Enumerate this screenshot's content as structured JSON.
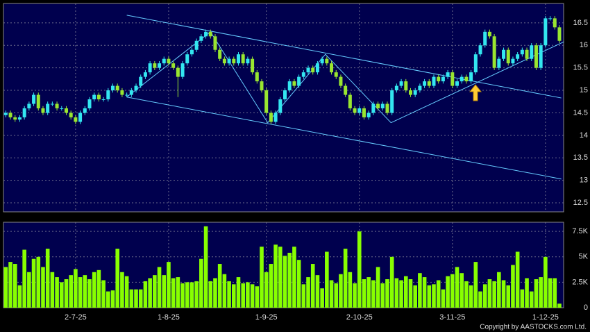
{
  "chart_data": [
    {
      "type": "candlestick",
      "up_color": "#33e6f0",
      "down_color": "#99e630",
      "trendline_color": "#66ccff",
      "xlim": [
        -0.5,
        119.9
      ],
      "ylim": [
        12.3,
        16.93
      ],
      "yticks": [
        12.5,
        13,
        13.5,
        14,
        14.5,
        15,
        15.5,
        16,
        16.5
      ],
      "grid": true,
      "open": [
        14.45,
        14.5,
        14.4,
        14.35,
        14.4,
        14.6,
        14.7,
        14.9,
        14.6,
        14.5,
        14.7,
        14.7,
        14.6,
        14.6,
        14.5,
        14.4,
        14.3,
        14.5,
        14.6,
        14.8,
        14.9,
        14.8,
        14.8,
        15.0,
        15.1,
        15.0,
        14.9,
        14.9,
        15.0,
        15.1,
        15.3,
        15.4,
        15.6,
        15.5,
        15.6,
        15.7,
        15.6,
        15.5,
        15.3,
        15.6,
        15.8,
        15.9,
        16.1,
        16.2,
        16.3,
        16.2,
        15.9,
        15.7,
        15.6,
        15.7,
        15.6,
        15.8,
        15.6,
        15.7,
        15.4,
        15.2,
        15.0,
        14.5,
        14.3,
        14.5,
        14.8,
        15.0,
        15.2,
        15.1,
        15.3,
        15.4,
        15.5,
        15.4,
        15.6,
        15.7,
        15.6,
        15.4,
        15.3,
        15.1,
        14.9,
        14.6,
        14.5,
        14.6,
        14.4,
        14.5,
        14.7,
        14.6,
        14.7,
        14.5,
        15.0,
        15.1,
        15.2,
        15.0,
        14.9,
        15.0,
        15.1,
        15.2,
        15.1,
        15.3,
        15.2,
        15.3,
        15.4,
        15.1,
        15.2,
        15.3,
        15.2,
        15.4,
        15.8,
        16.0,
        16.3,
        16.2,
        15.5,
        15.7,
        15.9,
        15.6,
        15.7,
        15.8,
        15.9,
        15.7,
        16.0,
        15.5,
        16.0,
        16.6,
        16.6,
        16.4
      ],
      "high": [
        14.55,
        14.55,
        14.45,
        14.45,
        14.65,
        14.75,
        14.95,
        14.95,
        14.65,
        14.75,
        14.75,
        14.75,
        14.65,
        14.65,
        14.55,
        14.45,
        14.55,
        14.65,
        14.85,
        14.95,
        14.95,
        14.85,
        15.05,
        15.15,
        15.15,
        15.05,
        14.95,
        15.05,
        15.15,
        15.35,
        15.45,
        15.65,
        15.65,
        15.65,
        15.75,
        15.75,
        15.65,
        15.55,
        15.65,
        15.85,
        15.95,
        16.15,
        16.25,
        16.35,
        16.35,
        16.25,
        15.95,
        15.75,
        15.75,
        15.75,
        15.85,
        15.85,
        15.75,
        15.75,
        15.45,
        15.25,
        15.05,
        14.55,
        14.55,
        14.85,
        15.05,
        15.25,
        15.25,
        15.35,
        15.45,
        15.55,
        15.55,
        15.65,
        15.75,
        15.75,
        15.65,
        15.45,
        15.35,
        15.15,
        14.95,
        14.65,
        14.65,
        14.65,
        14.55,
        14.75,
        14.75,
        14.75,
        14.75,
        15.05,
        15.15,
        15.25,
        15.25,
        15.05,
        15.05,
        15.15,
        15.25,
        15.25,
        15.35,
        15.35,
        15.35,
        15.45,
        15.45,
        15.25,
        15.35,
        15.35,
        15.45,
        15.85,
        16.05,
        16.35,
        16.35,
        16.25,
        15.75,
        15.95,
        15.95,
        15.75,
        15.85,
        15.95,
        15.95,
        16.05,
        16.05,
        16.05,
        16.65,
        16.65,
        16.65,
        16.45
      ],
      "low": [
        14.4,
        14.35,
        14.3,
        14.3,
        14.35,
        14.55,
        14.65,
        14.55,
        14.45,
        14.45,
        14.65,
        14.55,
        14.55,
        14.45,
        14.35,
        14.25,
        14.25,
        14.45,
        14.55,
        14.75,
        14.75,
        14.75,
        14.75,
        14.95,
        14.95,
        14.85,
        14.85,
        14.85,
        14.95,
        15.05,
        15.25,
        15.35,
        15.45,
        15.45,
        15.55,
        15.55,
        15.45,
        14.85,
        15.25,
        15.55,
        15.75,
        15.85,
        16.05,
        16.15,
        16.15,
        15.85,
        15.65,
        15.55,
        15.55,
        15.55,
        15.55,
        15.55,
        15.55,
        15.35,
        15.15,
        14.95,
        14.45,
        14.25,
        14.25,
        14.45,
        14.75,
        14.95,
        15.05,
        15.05,
        15.25,
        15.35,
        15.35,
        15.35,
        15.55,
        15.55,
        15.35,
        15.25,
        15.05,
        14.85,
        14.55,
        14.45,
        14.45,
        14.35,
        14.35,
        14.45,
        14.55,
        14.55,
        14.45,
        14.45,
        14.95,
        15.05,
        14.95,
        14.85,
        14.85,
        14.95,
        15.05,
        15.05,
        15.05,
        15.15,
        15.15,
        15.25,
        15.05,
        15.05,
        15.15,
        15.15,
        15.15,
        15.35,
        15.75,
        15.95,
        16.15,
        15.45,
        15.45,
        15.65,
        15.55,
        15.55,
        15.65,
        15.75,
        15.65,
        15.65,
        15.45,
        15.45,
        15.95,
        16.55,
        16.35,
        16.05
      ],
      "close": [
        14.5,
        14.4,
        14.35,
        14.4,
        14.6,
        14.7,
        14.9,
        14.6,
        14.5,
        14.7,
        14.7,
        14.6,
        14.6,
        14.5,
        14.4,
        14.3,
        14.5,
        14.6,
        14.8,
        14.9,
        14.8,
        14.8,
        15.0,
        15.1,
        15.0,
        14.9,
        14.9,
        15.0,
        15.1,
        15.3,
        15.4,
        15.6,
        15.5,
        15.6,
        15.7,
        15.6,
        15.5,
        15.3,
        15.6,
        15.8,
        15.9,
        16.1,
        16.2,
        16.3,
        16.2,
        15.9,
        15.7,
        15.6,
        15.7,
        15.6,
        15.8,
        15.6,
        15.7,
        15.4,
        15.2,
        15.0,
        14.5,
        14.3,
        14.5,
        14.8,
        15.0,
        15.2,
        15.1,
        15.3,
        15.4,
        15.5,
        15.4,
        15.6,
        15.7,
        15.6,
        15.4,
        15.3,
        15.1,
        14.9,
        14.6,
        14.5,
        14.6,
        14.4,
        14.5,
        14.7,
        14.6,
        14.7,
        14.5,
        15.0,
        15.1,
        15.2,
        15.0,
        14.9,
        15.0,
        15.1,
        15.2,
        15.1,
        15.3,
        15.2,
        15.3,
        15.4,
        15.1,
        15.2,
        15.3,
        15.2,
        15.4,
        15.8,
        16.0,
        16.3,
        16.2,
        15.5,
        15.7,
        15.9,
        15.6,
        15.7,
        15.8,
        15.9,
        15.7,
        16.0,
        15.5,
        16.0,
        16.6,
        16.6,
        16.4,
        16.1
      ],
      "trendlines": [
        {
          "x": [
            26,
            119.4
          ],
          "y": [
            16.67,
            14.83
          ]
        },
        {
          "x": [
            26,
            119.4
          ],
          "y": [
            14.85,
            13.03
          ]
        },
        {
          "x": [
            26,
            44,
            56.3,
            68.7,
            82.8
          ],
          "y": [
            14.85,
            16.3,
            14.28,
            15.8,
            14.28
          ]
        },
        {
          "x": [
            82.8,
            120
          ],
          "y": [
            14.28,
            16.08
          ]
        }
      ]
    },
    {
      "type": "bar",
      "color": "#88ff00",
      "xlim": [
        -0.5,
        119.9
      ],
      "ylim": [
        0,
        8400
      ],
      "yticks": [
        0,
        {
          "value": 2500,
          "label": "2.5K"
        },
        {
          "value": 5000,
          "label": "5K"
        },
        {
          "value": 7500,
          "label": "7.5K"
        }
      ],
      "xticks": [
        {
          "value": 15,
          "label": "2-7-25"
        },
        {
          "value": 35,
          "label": "1-8-25"
        },
        {
          "value": 56,
          "label": "1-9-25"
        },
        {
          "value": 76,
          "label": "2-10-25"
        },
        {
          "value": 96,
          "label": "3-11-25"
        },
        {
          "value": 116,
          "label": "1-12-25"
        }
      ],
      "grid": true,
      "values": [
        4000,
        4500,
        4300,
        2200,
        5700,
        3500,
        4800,
        5000,
        4000,
        5800,
        3500,
        3000,
        2500,
        2800,
        3200,
        3800,
        3000,
        3200,
        2800,
        3500,
        3700,
        2700,
        1600,
        1700,
        5800,
        3500,
        3100,
        1800,
        1800,
        1800,
        2600,
        2900,
        3200,
        4000,
        3200,
        4500,
        2900,
        3000,
        2400,
        2500,
        2500,
        2600,
        4800,
        8000,
        2600,
        2900,
        4300,
        3300,
        2600,
        2300,
        3000,
        2400,
        2500,
        2300,
        2100,
        6000,
        3500,
        4300,
        6200,
        6000,
        5100,
        5400,
        6000,
        4700,
        2300,
        3000,
        4300,
        3200,
        1900,
        5500,
        2700,
        2400,
        3300,
        5800,
        3500,
        2400,
        7500,
        2800,
        3000,
        2700,
        4000,
        2400,
        2800,
        5000,
        2900,
        2700,
        3100,
        2800,
        2200,
        3400,
        3000,
        2200,
        2300,
        2700,
        1800,
        3100,
        3300,
        4000,
        3400,
        2600,
        2200,
        4500,
        1600,
        2300,
        2800,
        2600,
        3500,
        2700,
        2200,
        4200,
        5500,
        1800,
        2900,
        1600,
        2800,
        3000,
        5000,
        2900,
        2900,
        400
      ]
    }
  ],
  "footer": "Copyright by AASTOCKS.com Ltd."
}
